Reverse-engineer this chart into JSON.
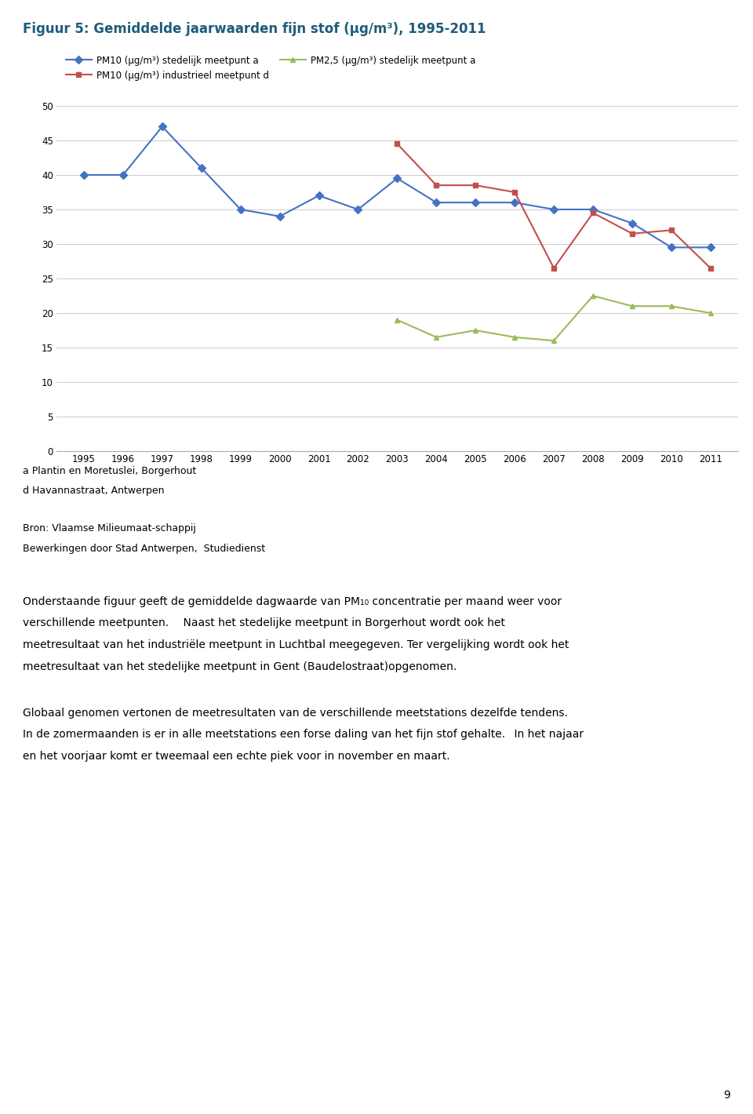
{
  "title": "Figuur 5: Gemiddelde jaarwaarden fijn stof (μg/m³), 1995-2011",
  "title_color": "#1F5C7A",
  "years": [
    1995,
    1996,
    1997,
    1998,
    1999,
    2000,
    2001,
    2002,
    2003,
    2004,
    2005,
    2006,
    2007,
    2008,
    2009,
    2010,
    2011
  ],
  "pm10_stedelijk": [
    40,
    40,
    47,
    41,
    35,
    34,
    37,
    35,
    39.5,
    36,
    36,
    36,
    35,
    35,
    33,
    29.5,
    29.5
  ],
  "pm10_industrieel": [
    null,
    null,
    null,
    null,
    null,
    null,
    null,
    null,
    44.5,
    38.5,
    38.5,
    37.5,
    26.5,
    34.5,
    31.5,
    32,
    26.5
  ],
  "pm25_stedelijk": [
    null,
    null,
    null,
    null,
    null,
    null,
    null,
    null,
    19,
    16.5,
    17.5,
    16.5,
    16,
    22.5,
    21,
    21,
    20
  ],
  "ylim": [
    0,
    50
  ],
  "yticks": [
    0,
    5,
    10,
    15,
    20,
    25,
    30,
    35,
    40,
    45,
    50
  ],
  "line1_color": "#4472C4",
  "line2_color": "#C0504D",
  "line3_color": "#9BBB59",
  "line1_label": "PM10 (μg/m³) stedelijk meetpunt a",
  "line2_label": "PM10 (μg/m³) industrieel meetpunt d",
  "line3_label": "PM2,5 (μg/m³) stedelijk meetpunt a",
  "footnote1": "a Plantin en Moretuslei, Borgerhout",
  "footnote2": "d Havannastraat, Antwerpen",
  "source1": "Bron: Vlaamse Milieumaat­schappij",
  "source2": "Bewerkingen door Stad Antwerpen,  Studiedienst",
  "page_number": "9"
}
